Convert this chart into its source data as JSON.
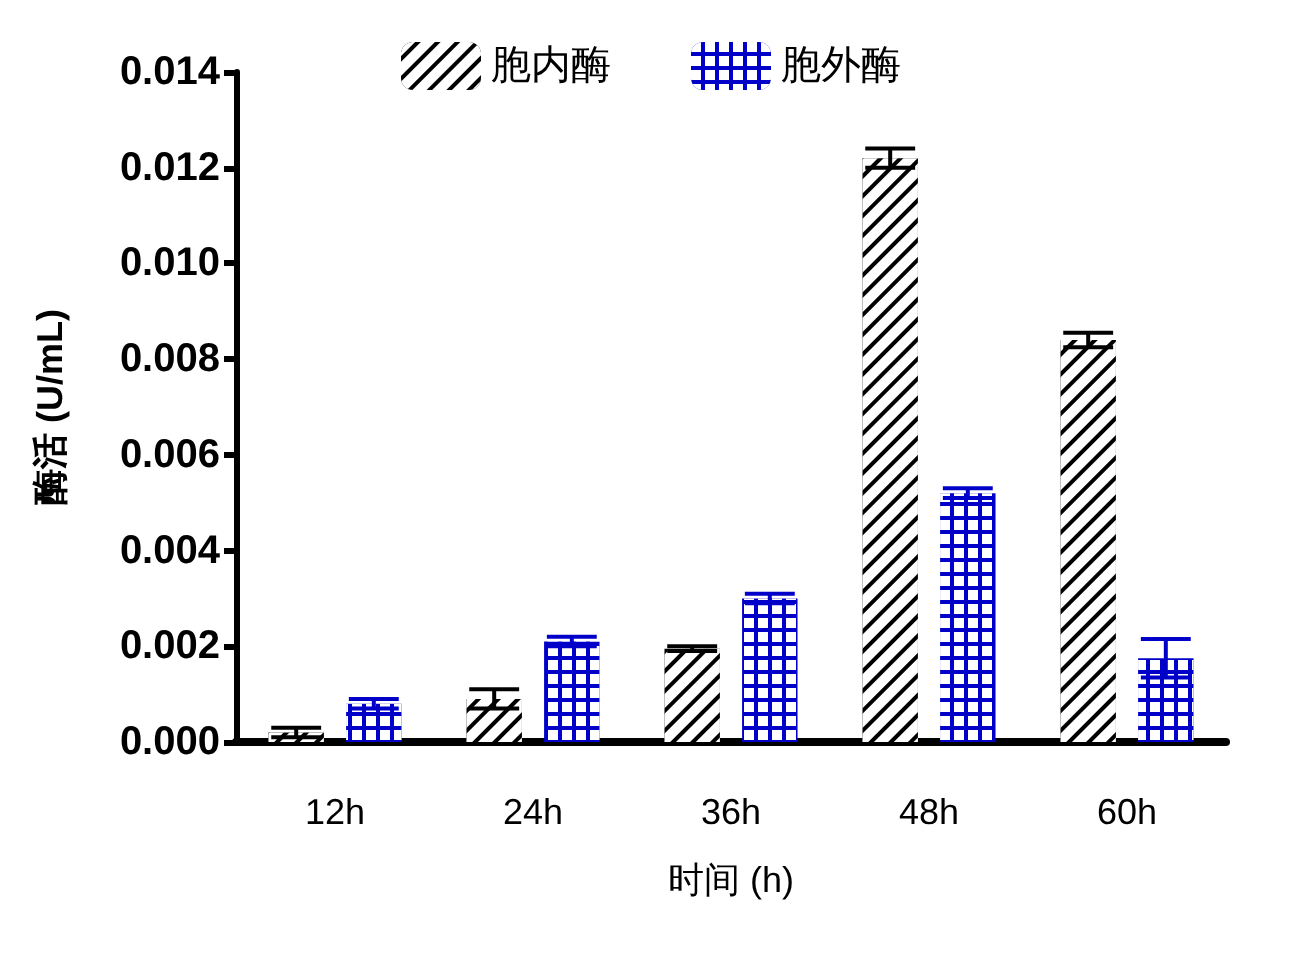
{
  "chart_data": {
    "type": "bar",
    "xlabel": "时间 (h)",
    "ylabel": "酶活 (U/mL)",
    "categories": [
      "12h",
      "24h",
      "36h",
      "48h",
      "60h"
    ],
    "series": [
      {
        "name": "胞内酶",
        "color": "#000000",
        "values": [
          0.0002,
          0.0009,
          0.00195,
          0.0122,
          0.0084
        ],
        "errors": [
          0.0001,
          0.0002,
          5e-05,
          0.0002,
          0.00015
        ]
      },
      {
        "name": "胞外酶",
        "color": "#0000c8",
        "values": [
          0.0008,
          0.0021,
          0.003,
          0.0052,
          0.00175
        ],
        "errors": [
          0.0001,
          0.0001,
          0.0001,
          0.0001,
          0.0004
        ]
      }
    ],
    "ylim": [
      0,
      0.014
    ],
    "yticks": [
      {
        "value": 0,
        "label": "0.000"
      },
      {
        "value": 0.002,
        "label": "0.002"
      },
      {
        "value": 0.004,
        "label": "0.004"
      },
      {
        "value": 0.006,
        "label": "0.006"
      },
      {
        "value": 0.008,
        "label": "0.008"
      },
      {
        "value": 0.01,
        "label": "0.010"
      },
      {
        "value": 0.012,
        "label": "0.012"
      },
      {
        "value": 0.014,
        "label": "0.014"
      }
    ],
    "grid": false,
    "legend": "top"
  }
}
